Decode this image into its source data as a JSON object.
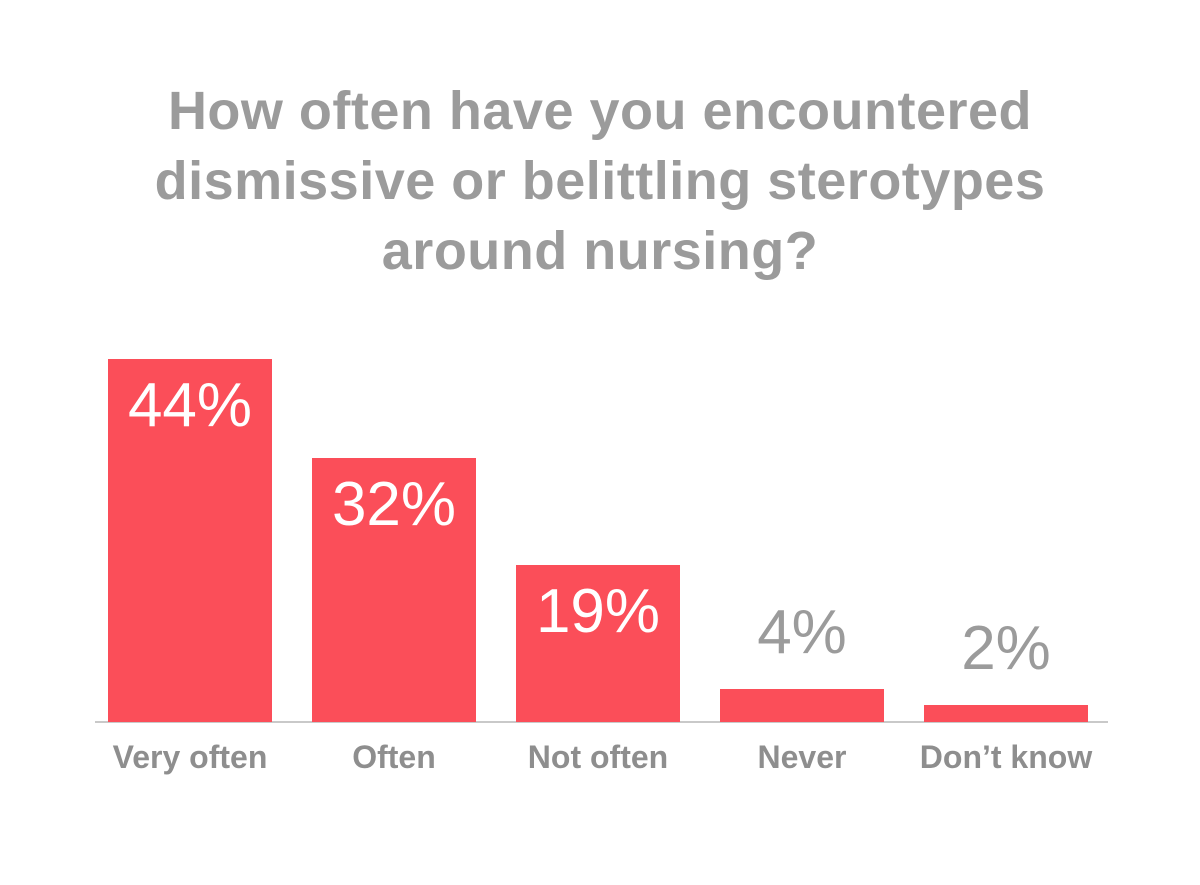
{
  "chart_data": {
    "type": "bar",
    "title": "How often have you encountered dismissive or belittling sterotypes around nursing?",
    "title_lines": [
      "How often have you encountered",
      "dismissive or belittling sterotypes",
      "around nursing?"
    ],
    "categories": [
      "Very often",
      "Often",
      "Not often",
      "Never",
      "Don’t know"
    ],
    "values": [
      44,
      32,
      19,
      4,
      2
    ],
    "value_labels": [
      "44%",
      "32%",
      "19%",
      "4%",
      "2%"
    ],
    "value_label_placement": [
      "inside",
      "inside",
      "inside",
      "above",
      "above"
    ],
    "unit": "percent",
    "xlabel": "",
    "ylabel": "",
    "ylim": [
      0,
      44
    ],
    "grid": false,
    "legend": false,
    "axis": "x-baseline-only",
    "colors": {
      "bar": "#fb4e59",
      "title": "#9b9b9b",
      "value_inside": "#ffffff",
      "value_outside": "#9b9b9b",
      "category": "#8e8e8e",
      "axis_line": "#c9c9c9",
      "background": "#ffffff"
    }
  }
}
